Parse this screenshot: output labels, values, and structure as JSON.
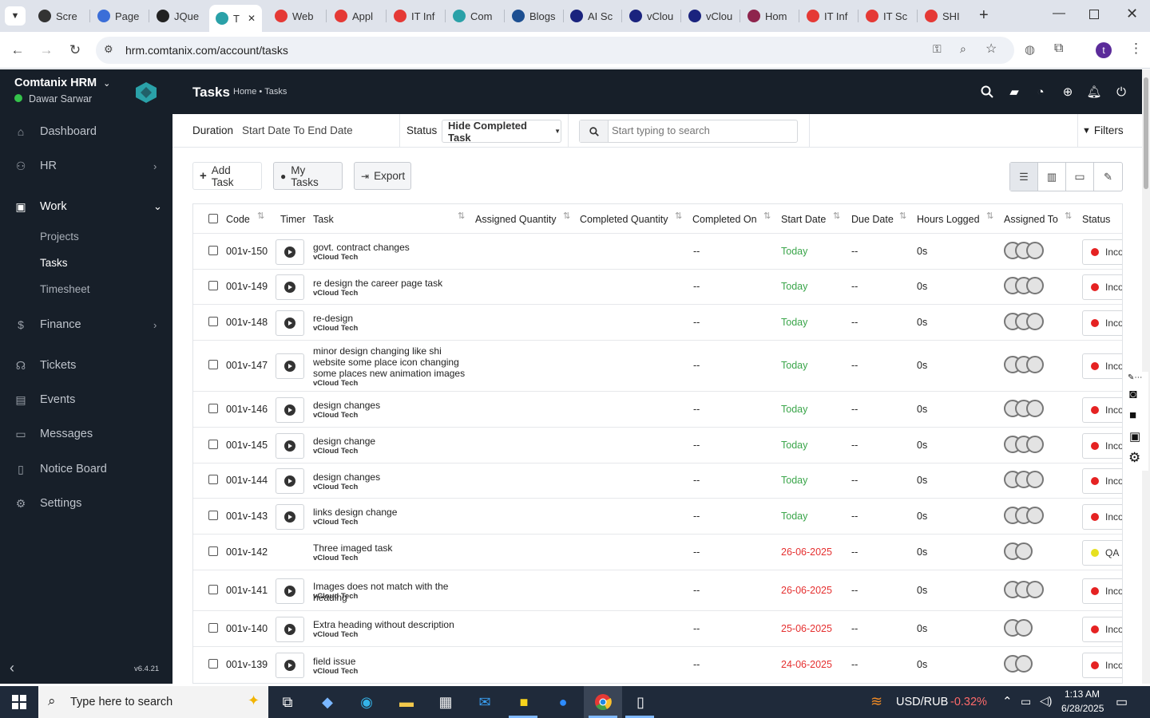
{
  "browser": {
    "tabs": [
      {
        "label": "Scre",
        "color": "#333333"
      },
      {
        "label": "Page",
        "color": "#3b6ed8"
      },
      {
        "label": "JQue",
        "color": "#222222"
      },
      {
        "label": "T",
        "color": "#2aa1a8",
        "active": true
      },
      {
        "label": "Web",
        "color": "#e53935"
      },
      {
        "label": "Appl",
        "color": "#e53935"
      },
      {
        "label": "IT Inf",
        "color": "#e53935"
      },
      {
        "label": "Com",
        "color": "#2aa1a8"
      },
      {
        "label": "Blogs",
        "color": "#1d4f91"
      },
      {
        "label": "AI Sc",
        "color": "#1a237e"
      },
      {
        "label": "vClou",
        "color": "#1a237e"
      },
      {
        "label": "vClou",
        "color": "#1a237e"
      },
      {
        "label": "Hom",
        "color": "#8e244d"
      },
      {
        "label": "IT Inf",
        "color": "#e53935"
      },
      {
        "label": "IT Sc",
        "color": "#e53935"
      },
      {
        "label": "SHI",
        "color": "#e53935"
      }
    ],
    "url": "hrm.comtanix.com/account/tasks",
    "profile_initial": "t"
  },
  "sidebar": {
    "company": "Comtanix HRM",
    "user": "Dawar Sarwar",
    "items": [
      {
        "label": "Dashboard",
        "icon": "home-icon"
      },
      {
        "label": "HR",
        "icon": "users-icon"
      },
      {
        "label": "Work",
        "icon": "briefcase-icon"
      },
      {
        "label": "Finance",
        "icon": "dollar-icon"
      },
      {
        "label": "Tickets",
        "icon": "headset-icon"
      },
      {
        "label": "Events",
        "icon": "calendar-icon"
      },
      {
        "label": "Messages",
        "icon": "message-icon"
      },
      {
        "label": "Notice Board",
        "icon": "clipboard-icon"
      },
      {
        "label": "Settings",
        "icon": "gear-icon"
      }
    ],
    "work_sub": [
      "Projects",
      "Tasks",
      "Timesheet"
    ],
    "version": "v6.4.21"
  },
  "header": {
    "title": "Tasks",
    "breadcrumb_home": "Home",
    "breadcrumb_current": "Tasks"
  },
  "filters": {
    "duration_label": "Duration",
    "duration_value": "Start Date To End Date",
    "status_label": "Status",
    "status_value": "Hide Completed Task",
    "search_placeholder": "Start typing to search",
    "filters_label": "Filters"
  },
  "toolbar": {
    "add_task": "Add Task",
    "my_tasks": "My Tasks",
    "export": "Export"
  },
  "table": {
    "headers": [
      "Code",
      "Timer",
      "Task",
      "Assigned Quantity",
      "Completed Quantity",
      "Completed On",
      "Start Date",
      "Due Date",
      "Hours Logged",
      "Assigned To",
      "Status"
    ],
    "rows": [
      {
        "code": "001v-150",
        "task": "govt. contract changes",
        "project": "vCloud Tech",
        "completed_on": "--",
        "start": "Today",
        "due": "--",
        "hours": "0s",
        "avatars": 3,
        "status": "Inco",
        "status_color": "#e52222",
        "timer": true
      },
      {
        "code": "001v-149",
        "task": "re design the career page task",
        "project": "vCloud Tech",
        "completed_on": "--",
        "start": "Today",
        "due": "--",
        "hours": "0s",
        "avatars": 3,
        "status": "Inco",
        "status_color": "#e52222",
        "timer": true
      },
      {
        "code": "001v-148",
        "task": "re-design",
        "project": "vCloud Tech",
        "completed_on": "--",
        "start": "Today",
        "due": "--",
        "hours": "0s",
        "avatars": 3,
        "status": "Inco",
        "status_color": "#e52222",
        "timer": true
      },
      {
        "code": "001v-147",
        "task": "minor design changing like shi website some place icon changing some places new animation images",
        "project": "vCloud Tech",
        "completed_on": "--",
        "start": "Today",
        "due": "--",
        "hours": "0s",
        "avatars": 3,
        "status": "Inco",
        "status_color": "#e52222",
        "timer": true
      },
      {
        "code": "001v-146",
        "task": "design changes",
        "project": "vCloud Tech",
        "completed_on": "--",
        "start": "Today",
        "due": "--",
        "hours": "0s",
        "avatars": 3,
        "status": "Inco",
        "status_color": "#e52222",
        "timer": true
      },
      {
        "code": "001v-145",
        "task": "design change",
        "project": "vCloud Tech",
        "completed_on": "--",
        "start": "Today",
        "due": "--",
        "hours": "0s",
        "avatars": 3,
        "status": "Inco",
        "status_color": "#e52222",
        "timer": true
      },
      {
        "code": "001v-144",
        "task": "design changes",
        "project": "vCloud Tech",
        "completed_on": "--",
        "start": "Today",
        "due": "--",
        "hours": "0s",
        "avatars": 3,
        "status": "Inco",
        "status_color": "#e52222",
        "timer": true
      },
      {
        "code": "001v-143",
        "task": "links design change",
        "project": "vCloud Tech",
        "completed_on": "--",
        "start": "Today",
        "due": "--",
        "hours": "0s",
        "avatars": 3,
        "status": "Inco",
        "status_color": "#e52222",
        "timer": true
      },
      {
        "code": "001v-142",
        "task": "Three imaged task",
        "project": "vCloud Tech",
        "completed_on": "--",
        "start": "26-06-2025",
        "due": "--",
        "hours": "0s",
        "avatars": 2,
        "status": "QA",
        "status_color": "#e6e020",
        "timer": false
      },
      {
        "code": "001v-141",
        "task": "Images does not match with the heading",
        "project": "vCloud Tech",
        "completed_on": "--",
        "start": "26-06-2025",
        "due": "--",
        "hours": "0s",
        "avatars": 3,
        "status": "Inco",
        "status_color": "#e52222",
        "timer": true
      },
      {
        "code": "001v-140",
        "task": "Extra heading without description",
        "project": "vCloud Tech",
        "completed_on": "--",
        "start": "25-06-2025",
        "due": "--",
        "hours": "0s",
        "avatars": 2,
        "status": "Inco",
        "status_color": "#e52222",
        "timer": true
      },
      {
        "code": "001v-139",
        "task": "field issue",
        "project": "vCloud Tech",
        "completed_on": "--",
        "start": "24-06-2025",
        "due": "--",
        "hours": "0s",
        "avatars": 2,
        "status": "Inco",
        "status_color": "#e52222",
        "timer": true
      }
    ]
  },
  "taskbar": {
    "search_placeholder": "Type here to search",
    "ticker_label": "USD/RUB",
    "ticker_value": "-0.32%",
    "time": "1:13 AM",
    "date": "6/28/2025"
  },
  "colors": {
    "sidebar_bg": "#171f29",
    "today_green": "#3aa54a",
    "past_red": "#e53030",
    "brand_teal": "#2aa1a8"
  }
}
